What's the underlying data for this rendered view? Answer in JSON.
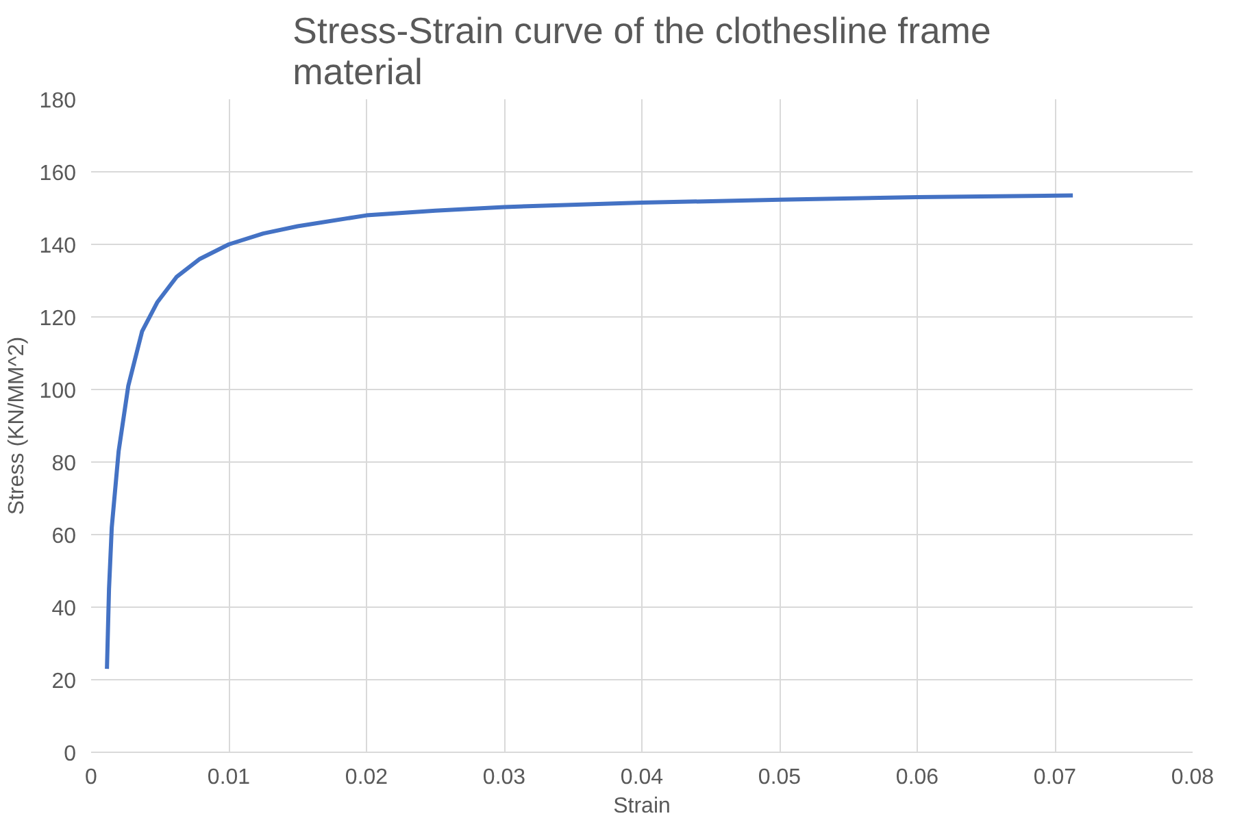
{
  "chart_data": {
    "type": "line",
    "title": "Stress-Strain curve of the clothesline frame material",
    "xlabel": "Strain",
    "ylabel": "Stress (KN/MM^2)",
    "x": [
      0.00115,
      0.0013,
      0.0015,
      0.002,
      0.0027,
      0.0037,
      0.0048,
      0.0062,
      0.0079,
      0.01,
      0.0125,
      0.015,
      0.02,
      0.025,
      0.03,
      0.04,
      0.05,
      0.06,
      0.0713
    ],
    "series": [
      {
        "color": "#4472c4",
        "values": [
          23,
          45,
          62,
          83,
          101,
          116,
          124,
          131,
          136,
          140,
          143,
          145,
          148,
          149.3,
          150.3,
          151.5,
          152.3,
          153,
          153.5
        ]
      }
    ],
    "xlim": [
      0,
      0.08
    ],
    "xticks": [
      0,
      0.01,
      0.02,
      0.03,
      0.04,
      0.05,
      0.06,
      0.07,
      0.08
    ],
    "ylim": [
      0,
      180
    ],
    "yticks": [
      0,
      20,
      40,
      60,
      80,
      100,
      120,
      140,
      160,
      180
    ],
    "grid": true,
    "marker": "none",
    "line_style": "solid"
  }
}
